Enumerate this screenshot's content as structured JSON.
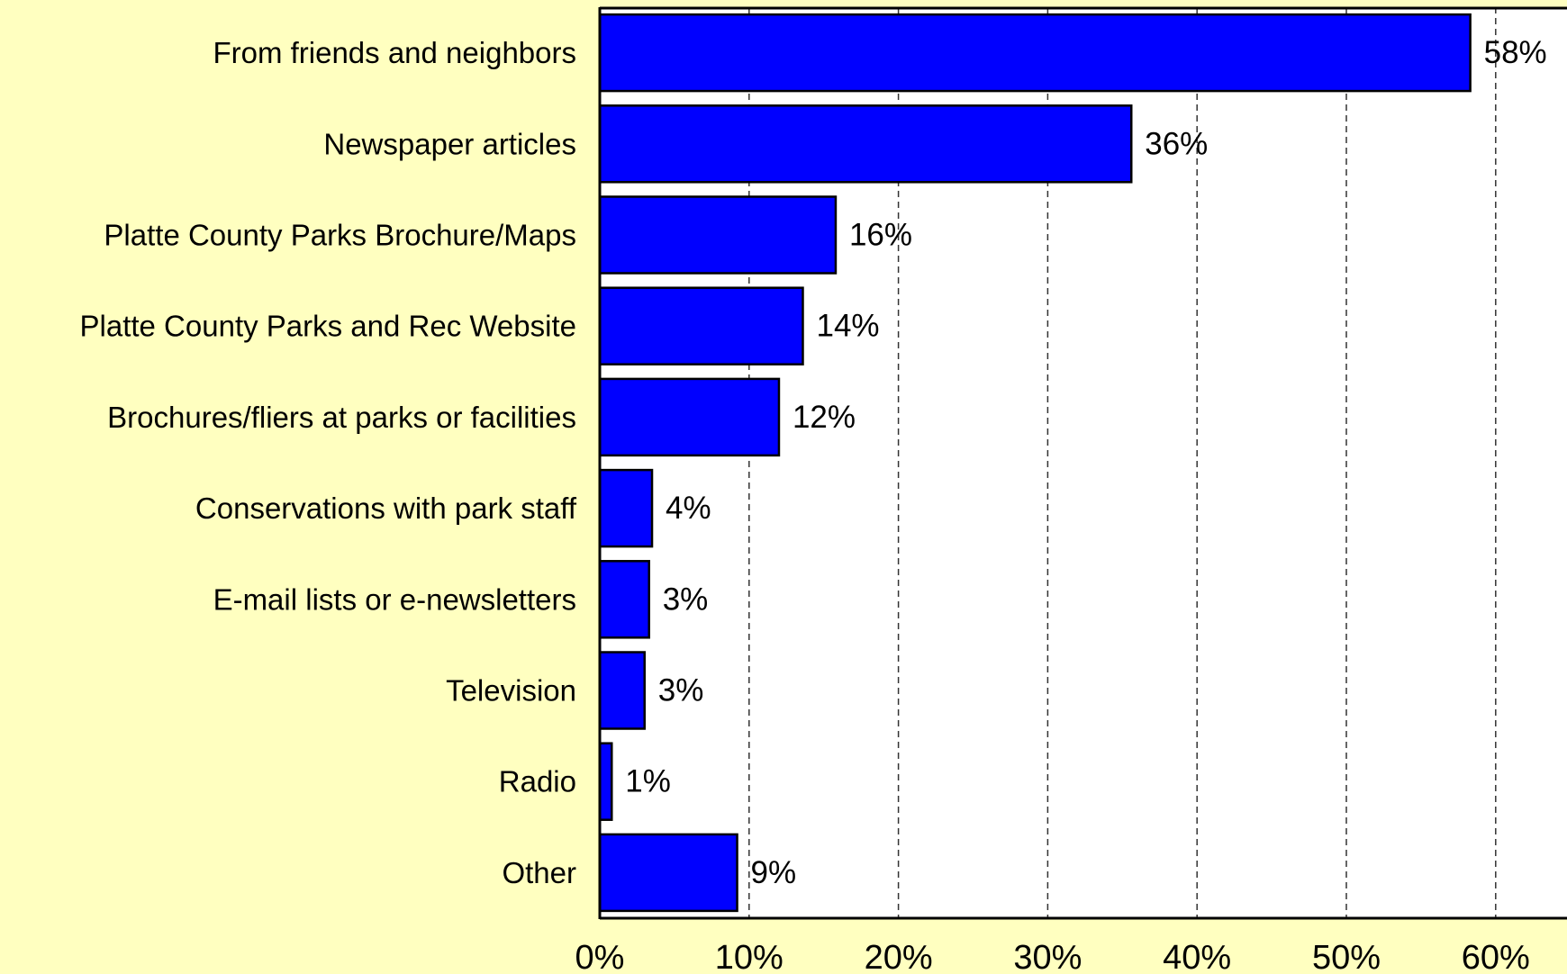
{
  "chart_data": {
    "type": "bar",
    "orientation": "horizontal",
    "categories": [
      "From friends and neighbors",
      "Newspaper articles",
      "Platte County Parks Brochure/Maps",
      "Platte County Parks and Rec Website",
      "Brochures/fliers at parks or facilities",
      "Conservations with park staff",
      "E-mail lists or e-newsletters",
      "Television",
      "Radio",
      "Other"
    ],
    "values": [
      58.3,
      35.6,
      15.8,
      13.6,
      12.0,
      3.5,
      3.3,
      3.0,
      0.8,
      9.2
    ],
    "data_labels": [
      "58%",
      "36%",
      "16%",
      "14%",
      "12%",
      "4%",
      "3%",
      "3%",
      "1%",
      "9%"
    ],
    "xticks": [
      "0%",
      "10%",
      "20%",
      "30%",
      "40%",
      "50%",
      "60%"
    ],
    "xlim": [
      0,
      65
    ],
    "grid": "vertical dashed",
    "colors": {
      "bar": "#0000ff",
      "bar_edge": "#000000",
      "background": "#ffffc0",
      "plot_bg": "#ffffff"
    }
  }
}
